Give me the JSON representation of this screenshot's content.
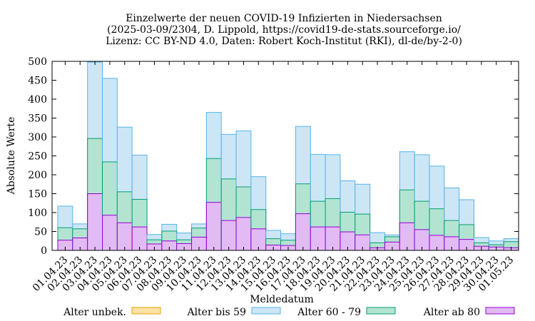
{
  "chart_data": {
    "type": "bar",
    "stacked": true,
    "title": [
      "Einzelwerte der neuen COVID-19 Infizierten in Niedersachsen",
      "(2025-03-09/2304, D. Lippold, https://covid19-de-stats.sourceforge.io/",
      "Lizenz: CC BY-ND 4.0, Daten: Robert Koch-Institut (RKI), dl-de/by-2-0)"
    ],
    "xlabel": "Meldedatum",
    "ylabel": "Absolute Werte",
    "ylim": [
      0,
      500
    ],
    "yticks": [
      0,
      50,
      100,
      150,
      200,
      250,
      300,
      350,
      400,
      450,
      500
    ],
    "categories": [
      "01.04.23",
      "02.04.23",
      "03.04.23",
      "04.04.23",
      "05.04.23",
      "06.04.23",
      "07.04.23",
      "08.04.23",
      "09.04.23",
      "10.04.23",
      "11.04.23",
      "12.04.23",
      "13.04.23",
      "14.04.23",
      "15.04.23",
      "16.04.23",
      "17.04.23",
      "18.04.23",
      "19.04.23",
      "20.04.23",
      "21.04.23",
      "22.04.23",
      "23.04.23",
      "24.04.23",
      "25.04.23",
      "26.04.23",
      "27.04.23",
      "28.04.23",
      "29.04.23",
      "30.04.23",
      "01.05.23"
    ],
    "legend_position": "bottom",
    "series": [
      {
        "name": "Alter unbek.",
        "fill": "#fbe3a6",
        "stroke": "#e6a000",
        "values": [
          0,
          0,
          0,
          0,
          0,
          0,
          0,
          0,
          0,
          0,
          0,
          0,
          0,
          0,
          0,
          0,
          0,
          0,
          0,
          0,
          0,
          0,
          0,
          0,
          0,
          0,
          0,
          0,
          0,
          0,
          0
        ]
      },
      {
        "name": "Alter ab 80",
        "fill": "#e2baf4",
        "stroke": "#9400d3",
        "values": [
          27,
          33,
          150,
          93,
          73,
          62,
          17,
          25,
          18,
          35,
          127,
          79,
          87,
          57,
          14,
          13,
          97,
          62,
          62,
          49,
          41,
          7,
          22,
          73,
          55,
          40,
          36,
          29,
          11,
          9,
          7
        ]
      },
      {
        "name": "Alter 60 - 79",
        "fill": "#b3e4d1",
        "stroke": "#009e73",
        "values": [
          33,
          24,
          146,
          141,
          82,
          73,
          11,
          26,
          10,
          24,
          116,
          110,
          81,
          51,
          17,
          14,
          79,
          68,
          75,
          52,
          55,
          13,
          14,
          87,
          75,
          70,
          43,
          39,
          9,
          6,
          16
        ]
      },
      {
        "name": "Alter bis 59",
        "fill": "#cde6f6",
        "stroke": "#56b4e9",
        "values": [
          57,
          13,
          202,
          221,
          171,
          117,
          14,
          18,
          18,
          11,
          122,
          118,
          148,
          87,
          22,
          17,
          152,
          124,
          116,
          83,
          79,
          27,
          5,
          101,
          123,
          113,
          86,
          66,
          14,
          10,
          8
        ]
      }
    ]
  }
}
